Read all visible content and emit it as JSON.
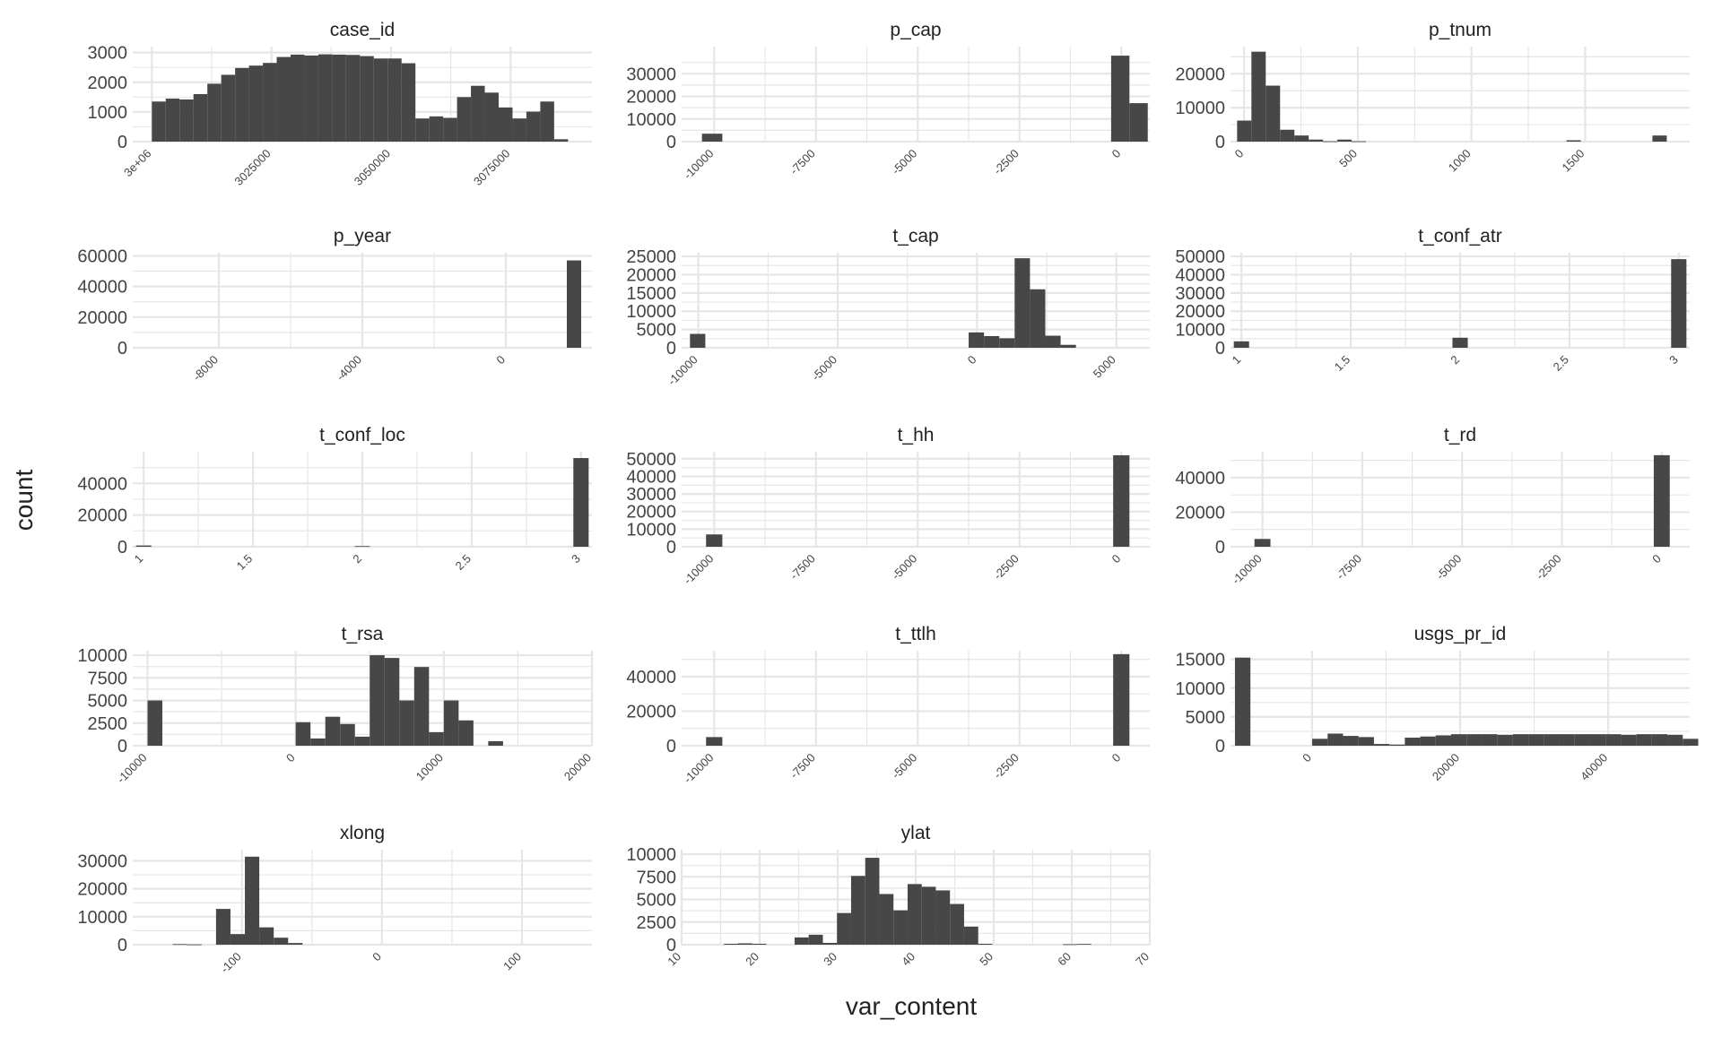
{
  "colors": {
    "bar": "#474747",
    "grid": "#e6e6e6",
    "text": "#222222",
    "tick_text": "#444444"
  },
  "chart_data": {
    "type": "bar",
    "layout": "facet_wrap histograms, 3 columns, free scales",
    "grid": true,
    "xlabel": "var_content",
    "ylabel": "count",
    "panels": [
      {
        "title": "case_id",
        "xlim": [
          2996000,
          3092000
        ],
        "ylim": [
          0,
          3200
        ],
        "x_ticks": [
          3000000,
          3025000,
          3050000,
          3075000
        ],
        "x_tick_labels": [
          "3e+06",
          "3025000",
          "3050000",
          "3075000"
        ],
        "y_ticks": [
          0,
          1000,
          2000,
          3000
        ],
        "y_tick_labels": [
          "0",
          "1000",
          "2000",
          "3000"
        ],
        "bin_start": 3000000,
        "bin_width": 2900,
        "counts": [
          1350,
          1450,
          1420,
          1600,
          1950,
          2250,
          2480,
          2560,
          2650,
          2850,
          2930,
          2900,
          2940,
          2930,
          2920,
          2880,
          2800,
          2800,
          2640,
          780,
          850,
          800,
          1500,
          1880,
          1650,
          1150,
          780,
          1010,
          1350,
          80
        ]
      },
      {
        "title": "p_cap",
        "xlim": [
          -10800,
          700
        ],
        "ylim": [
          0,
          42000
        ],
        "x_ticks": [
          -10000,
          -7500,
          -5000,
          -2500,
          0
        ],
        "x_tick_labels": [
          "-10000",
          "-7500",
          "-5000",
          "-2500",
          "0"
        ],
        "y_ticks": [
          0,
          10000,
          20000,
          30000
        ],
        "y_tick_labels": [
          "0",
          "10000",
          "20000",
          "30000"
        ],
        "bars": [
          {
            "x0": -10300,
            "x1": -9800,
            "count": 3500
          },
          {
            "x0": -250,
            "x1": 200,
            "count": 38000
          },
          {
            "x0": 200,
            "x1": 650,
            "count": 17000
          }
        ]
      },
      {
        "title": "p_tnum",
        "xlim": [
          -60,
          1960
        ],
        "ylim": [
          0,
          28000
        ],
        "x_ticks": [
          0,
          500,
          1000,
          1500
        ],
        "x_tick_labels": [
          "0",
          "500",
          "1000",
          "1500"
        ],
        "y_ticks": [
          0,
          10000,
          20000
        ],
        "y_tick_labels": [
          "0",
          "10000",
          "20000"
        ],
        "bin_start": -31,
        "bin_width": 63,
        "counts": [
          6200,
          26500,
          16500,
          3500,
          1800,
          600,
          100,
          600,
          100,
          0,
          0,
          0,
          0,
          0,
          0,
          0,
          0,
          0,
          0,
          0,
          0,
          0,
          0,
          400,
          0,
          0,
          0,
          0,
          0,
          1800
        ]
      },
      {
        "title": "p_year",
        "xlim": [
          -10400,
          2400
        ],
        "ylim": [
          0,
          62000
        ],
        "x_ticks": [
          -8000,
          -4000,
          0
        ],
        "x_tick_labels": [
          "-8000",
          "-4000",
          "0"
        ],
        "y_ticks": [
          0,
          20000,
          40000,
          60000
        ],
        "y_tick_labels": [
          "0",
          "20000",
          "40000",
          "60000"
        ],
        "bars": [
          {
            "x0": 1700,
            "x1": 2100,
            "count": 57000
          }
        ]
      },
      {
        "title": "t_cap",
        "xlim": [
          -10600,
          6200
        ],
        "ylim": [
          0,
          26000
        ],
        "x_ticks": [
          -10000,
          -5000,
          0,
          5000
        ],
        "x_tick_labels": [
          "-10000",
          "-5000",
          "0",
          "5000"
        ],
        "y_ticks": [
          0,
          5000,
          10000,
          15000,
          20000,
          25000
        ],
        "y_tick_labels": [
          "0",
          "5000",
          "10000",
          "15000",
          "20000",
          "25000"
        ],
        "bars": [
          {
            "x0": -10300,
            "x1": -9750,
            "count": 3800
          },
          {
            "x0": -300,
            "x1": 250,
            "count": 4200
          },
          {
            "x0": 250,
            "x1": 800,
            "count": 3200
          },
          {
            "x0": 800,
            "x1": 1350,
            "count": 2600
          },
          {
            "x0": 1350,
            "x1": 1900,
            "count": 24500
          },
          {
            "x0": 1900,
            "x1": 2450,
            "count": 16000
          },
          {
            "x0": 2450,
            "x1": 3000,
            "count": 3300
          },
          {
            "x0": 3000,
            "x1": 3550,
            "count": 800
          }
        ]
      },
      {
        "title": "t_conf_atr",
        "xlim": [
          0.95,
          3.05
        ],
        "ylim": [
          0,
          52000
        ],
        "x_ticks": [
          1,
          1.5,
          2,
          2.5,
          3
        ],
        "x_tick_labels": [
          "1",
          "1.5",
          "2",
          "2.5",
          "3"
        ],
        "y_ticks": [
          0,
          10000,
          20000,
          30000,
          40000,
          50000
        ],
        "y_tick_labels": [
          "0",
          "10000",
          "20000",
          "30000",
          "40000",
          "50000"
        ],
        "bars": [
          {
            "x0": 0.965,
            "x1": 1.035,
            "count": 3500
          },
          {
            "x0": 1.965,
            "x1": 2.035,
            "count": 5500
          },
          {
            "x0": 2.965,
            "x1": 3.035,
            "count": 48500
          }
        ]
      },
      {
        "title": "t_conf_loc",
        "xlim": [
          0.95,
          3.05
        ],
        "ylim": [
          0,
          60000
        ],
        "x_ticks": [
          1,
          1.5,
          2,
          2.5,
          3
        ],
        "x_tick_labels": [
          "1",
          "1.5",
          "2",
          "2.5",
          "3"
        ],
        "y_ticks": [
          0,
          20000,
          40000
        ],
        "y_tick_labels": [
          "0",
          "20000",
          "40000"
        ],
        "bars": [
          {
            "x0": 0.965,
            "x1": 1.035,
            "count": 800
          },
          {
            "x0": 1.965,
            "x1": 2.035,
            "count": 400
          },
          {
            "x0": 2.965,
            "x1": 3.035,
            "count": 56000
          }
        ]
      },
      {
        "title": "t_hh",
        "xlim": [
          -10800,
          700
        ],
        "ylim": [
          0,
          54000
        ],
        "x_ticks": [
          -10000,
          -7500,
          -5000,
          -2500,
          0
        ],
        "x_tick_labels": [
          "-10000",
          "-7500",
          "-5000",
          "-2500",
          "0"
        ],
        "y_ticks": [
          0,
          10000,
          20000,
          30000,
          40000,
          50000
        ],
        "y_tick_labels": [
          "0",
          "10000",
          "20000",
          "30000",
          "40000",
          "50000"
        ],
        "bars": [
          {
            "x0": -10200,
            "x1": -9800,
            "count": 7000
          },
          {
            "x0": -200,
            "x1": 200,
            "count": 52000
          }
        ]
      },
      {
        "title": "t_rd",
        "xlim": [
          -10800,
          700
        ],
        "ylim": [
          0,
          55000
        ],
        "x_ticks": [
          -10000,
          -7500,
          -5000,
          -2500,
          0
        ],
        "x_tick_labels": [
          "-10000",
          "-7500",
          "-5000",
          "-2500",
          "0"
        ],
        "y_ticks": [
          0,
          20000,
          40000
        ],
        "y_tick_labels": [
          "0",
          "20000",
          "40000"
        ],
        "bars": [
          {
            "x0": -10200,
            "x1": -9800,
            "count": 4500
          },
          {
            "x0": -200,
            "x1": 200,
            "count": 53000
          }
        ]
      },
      {
        "title": "t_rsa",
        "xlim": [
          -11000,
          20000
        ],
        "ylim": [
          0,
          10500
        ],
        "x_ticks": [
          -10000,
          0,
          10000,
          20000
        ],
        "x_tick_labels": [
          "-10000",
          "0",
          "10000",
          "20000"
        ],
        "y_ticks": [
          0,
          2500,
          5000,
          7500,
          10000
        ],
        "y_tick_labels": [
          "0",
          "2500",
          "5000",
          "7500",
          "10000"
        ],
        "bin_start": -10000,
        "bin_width": 1000,
        "counts": [
          5000,
          0,
          0,
          0,
          0,
          0,
          0,
          0,
          0,
          0,
          2600,
          800,
          3200,
          2400,
          1000,
          10000,
          9700,
          5000,
          8700,
          1500,
          5000,
          2800,
          0,
          500
        ]
      },
      {
        "title": "t_ttlh",
        "xlim": [
          -10800,
          700
        ],
        "ylim": [
          0,
          55000
        ],
        "x_ticks": [
          -10000,
          -7500,
          -5000,
          -2500,
          0
        ],
        "x_tick_labels": [
          "-10000",
          "-7500",
          "-5000",
          "-2500",
          "0"
        ],
        "y_ticks": [
          0,
          20000,
          40000
        ],
        "y_tick_labels": [
          "0",
          "20000",
          "40000"
        ],
        "bars": [
          {
            "x0": -10200,
            "x1": -9800,
            "count": 5000
          },
          {
            "x0": -200,
            "x1": 200,
            "count": 53000
          }
        ]
      },
      {
        "title": "usgs_pr_id",
        "xlim": [
          -11000,
          51000
        ],
        "ylim": [
          0,
          16500
        ],
        "x_ticks": [
          0,
          20000,
          40000
        ],
        "x_tick_labels": [
          "0",
          "20000",
          "40000"
        ],
        "y_ticks": [
          0,
          5000,
          10000,
          15000
        ],
        "y_tick_labels": [
          "0",
          "5000",
          "10000",
          "15000"
        ],
        "bin_start": -10400,
        "bin_width": 2085,
        "counts": [
          15300,
          0,
          0,
          0,
          0,
          1200,
          2100,
          1700,
          1500,
          300,
          200,
          1400,
          1600,
          1800,
          2000,
          2000,
          2000,
          1900,
          2000,
          2000,
          2000,
          2000,
          2000,
          2000,
          2000,
          1900,
          2000,
          2000,
          1900,
          1200
        ]
      },
      {
        "title": "xlong",
        "xlim": [
          -178,
          150
        ],
        "ylim": [
          0,
          34000
        ],
        "x_ticks": [
          -100,
          0,
          100
        ],
        "x_tick_labels": [
          "-100",
          "0",
          "100"
        ],
        "y_ticks": [
          0,
          10000,
          20000,
          30000
        ],
        "y_tick_labels": [
          "0",
          "10000",
          "20000",
          "30000"
        ],
        "bin_start": -170,
        "bin_width": 10.3,
        "counts": [
          0,
          0,
          200,
          100,
          0,
          12800,
          3800,
          31500,
          6200,
          2500,
          600,
          0,
          0,
          0,
          0,
          0,
          0,
          0,
          0,
          0,
          0,
          0,
          0,
          0,
          0,
          0,
          0,
          0,
          0,
          0
        ]
      },
      {
        "title": "ylat",
        "xlim": [
          10,
          70
        ],
        "ylim": [
          0,
          10500
        ],
        "x_ticks": [
          10,
          20,
          30,
          40,
          50,
          60,
          70
        ],
        "x_tick_labels": [
          "10",
          "20",
          "30",
          "40",
          "50",
          "60",
          "70"
        ],
        "y_ticks": [
          0,
          2500,
          5000,
          7500,
          10000
        ],
        "y_tick_labels": [
          "0",
          "2500",
          "5000",
          "7500",
          "10000"
        ],
        "bin_start": 10,
        "bin_width": 1.81,
        "counts": [
          0,
          0,
          0,
          100,
          150,
          100,
          0,
          0,
          800,
          1100,
          200,
          3500,
          7600,
          9600,
          5600,
          3800,
          6700,
          6400,
          6000,
          4500,
          2000,
          100,
          0,
          0,
          0,
          0,
          0,
          50,
          80,
          0
        ]
      }
    ]
  }
}
